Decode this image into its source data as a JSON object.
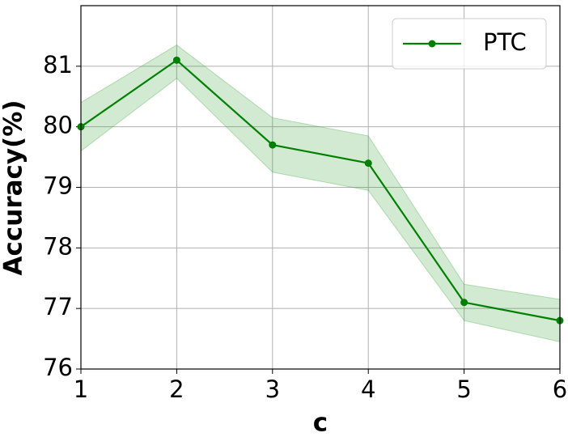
{
  "chart_data": {
    "type": "line",
    "x_label": "c",
    "y_label": "Accuracy(%)",
    "x": [
      1,
      2,
      3,
      4,
      5,
      6
    ],
    "series": [
      {
        "name": "PTC",
        "color": "#008000",
        "band_color": "#2ca02c",
        "values": [
          80.0,
          81.1,
          79.7,
          79.4,
          77.1,
          76.8
        ],
        "lower": [
          79.6,
          80.8,
          79.25,
          78.95,
          76.8,
          76.45
        ],
        "upper": [
          80.4,
          81.35,
          80.15,
          79.85,
          77.4,
          77.15
        ]
      }
    ],
    "xlim": [
      1,
      6
    ],
    "xticks": [
      1,
      2,
      3,
      4,
      5,
      6
    ],
    "ylim": [
      76,
      82
    ],
    "yticks": [
      76,
      77,
      78,
      79,
      80,
      81
    ],
    "grid": true,
    "legend": "upper right"
  }
}
